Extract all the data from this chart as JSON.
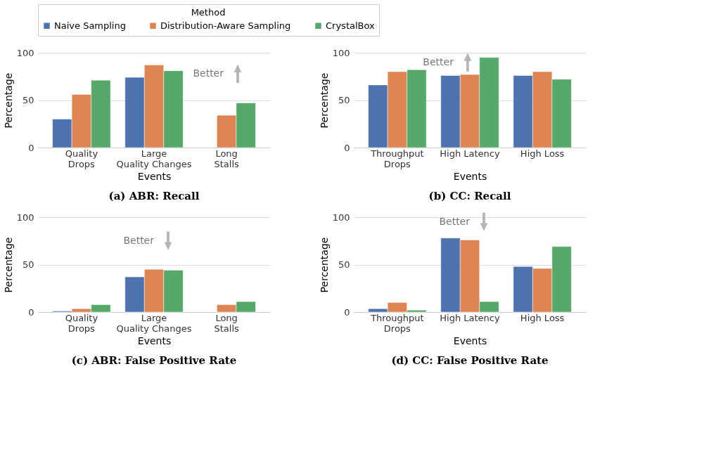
{
  "chart_data": [
    {
      "type": "bar",
      "title": "(a) ABR: Recall",
      "xlabel": "Events",
      "ylabel": "Percentage",
      "legend_title": "Method",
      "legend": "top",
      "grid": "y",
      "categories": [
        "Quality\nDrops",
        "Large\nQuality Changes",
        "Long\nStalls"
      ],
      "ylim": [
        0,
        100
      ],
      "yticks": [
        0,
        50,
        100
      ],
      "series": [
        {
          "name": "Naive Sampling",
          "color": "#4c72b0",
          "values": [
            30,
            74,
            null
          ]
        },
        {
          "name": "Distribution-Aware Sampling",
          "color": "#dd8452",
          "values": [
            56,
            87,
            34
          ]
        },
        {
          "name": "CrystalBox",
          "color": "#55a868",
          "values": [
            71,
            81,
            47
          ]
        }
      ],
      "annotations": [
        "Better"
      ]
    },
    {
      "type": "bar",
      "title": "(b) CC: Recall",
      "xlabel": "Events",
      "ylabel": "Percentage",
      "grid": "y",
      "categories": [
        "Throughput\nDrops",
        "High Latency",
        "High Loss"
      ],
      "ylim": [
        0,
        100
      ],
      "yticks": [
        0,
        50,
        100
      ],
      "series": [
        {
          "name": "Naive Sampling",
          "color": "#4c72b0",
          "values": [
            66,
            76,
            76
          ]
        },
        {
          "name": "Distribution-Aware Sampling",
          "color": "#dd8452",
          "values": [
            80,
            77,
            80
          ]
        },
        {
          "name": "CrystalBox",
          "color": "#55a868",
          "values": [
            82,
            95,
            72
          ]
        }
      ],
      "annotations": [
        "Better"
      ]
    },
    {
      "type": "bar",
      "title": "(c) ABR: False Positive Rate",
      "xlabel": "Events",
      "ylabel": "Percentage",
      "grid": "y",
      "categories": [
        "Quality\nDrops",
        "Large\nQuality Changes",
        "Long\nStalls"
      ],
      "ylim": [
        0,
        100
      ],
      "yticks": [
        0,
        50,
        100
      ],
      "series": [
        {
          "name": "Naive Sampling",
          "color": "#4c72b0",
          "values": [
            1,
            37,
            null
          ]
        },
        {
          "name": "Distribution-Aware Sampling",
          "color": "#dd8452",
          "values": [
            3.5,
            45,
            7.7
          ]
        },
        {
          "name": "CrystalBox",
          "color": "#55a868",
          "values": [
            7.7,
            44,
            11
          ]
        }
      ],
      "annotations": [
        "Better"
      ]
    },
    {
      "type": "bar",
      "title": "(d) CC: False Positive Rate",
      "xlabel": "Events",
      "ylabel": "Percentage",
      "grid": "y",
      "categories": [
        "Throughput\nDrops",
        "High Latency",
        "High Loss"
      ],
      "ylim": [
        0,
        100
      ],
      "yticks": [
        0,
        50,
        100
      ],
      "series": [
        {
          "name": "Naive Sampling",
          "color": "#4c72b0",
          "values": [
            3.5,
            78,
            48
          ]
        },
        {
          "name": "Distribution-Aware Sampling",
          "color": "#dd8452",
          "values": [
            10,
            76,
            46
          ]
        },
        {
          "name": "CrystalBox",
          "color": "#55a868",
          "values": [
            2,
            11,
            69
          ]
        }
      ],
      "annotations": [
        "Better"
      ]
    }
  ]
}
